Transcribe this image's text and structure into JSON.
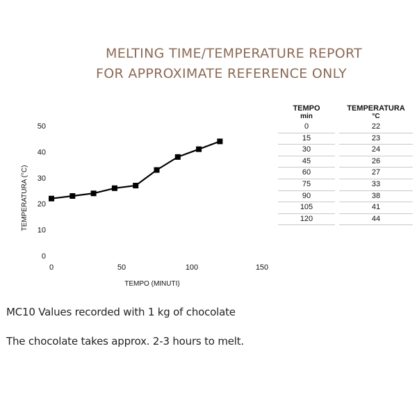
{
  "report": {
    "title_line1": "MELTING TIME/TEMPERATURE REPORT",
    "title_line2": "FOR APPROXIMATE REFERENCE ONLY",
    "note1": "MC10 Values recorded with 1 kg of chocolate",
    "note2": "The chocolate takes approx. 2-3 hours to melt."
  },
  "colors": {
    "title": "#8b6a55",
    "line": "#000000"
  },
  "table": {
    "col1_header": "TEMPO",
    "col1_unit": "min",
    "col2_header": "TEMPERATURA",
    "col2_unit": "°C",
    "rows": [
      {
        "tempo": "0",
        "temp": "22"
      },
      {
        "tempo": "15",
        "temp": "23"
      },
      {
        "tempo": "30",
        "temp": "24"
      },
      {
        "tempo": "45",
        "temp": "26"
      },
      {
        "tempo": "60",
        "temp": "27"
      },
      {
        "tempo": "75",
        "temp": "33"
      },
      {
        "tempo": "90",
        "temp": "38"
      },
      {
        "tempo": "105",
        "temp": "41"
      },
      {
        "tempo": "120",
        "temp": "44"
      }
    ]
  },
  "chart_data": {
    "type": "line",
    "x": [
      0,
      15,
      30,
      45,
      60,
      75,
      90,
      105,
      120
    ],
    "series": [
      {
        "values": [
          22,
          23,
          24,
          26,
          27,
          33,
          38,
          41,
          44
        ]
      }
    ],
    "xlabel": "TEMPO (MINUTI)",
    "ylabel": "TEMPERATURA (°C)",
    "xlim": [
      0,
      150
    ],
    "ylim": [
      0,
      50
    ],
    "xticks": [
      0,
      50,
      100,
      150
    ],
    "yticks": [
      0,
      10,
      20,
      30,
      40,
      50
    ],
    "marker": "square",
    "grid": false
  }
}
